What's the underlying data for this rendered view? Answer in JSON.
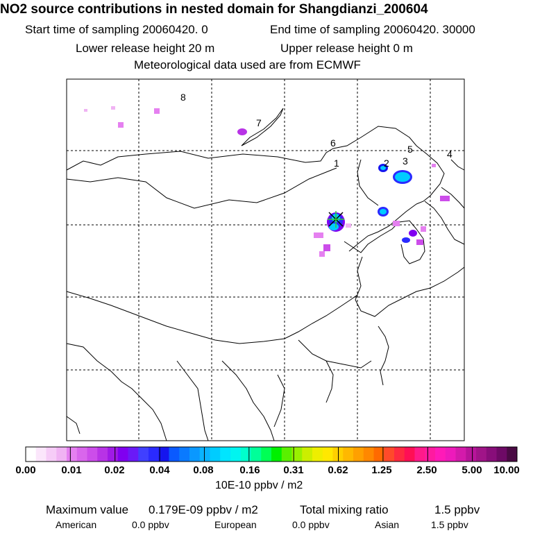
{
  "header": {
    "title": "NO2 source contributions in nested domain for Shangdianzi_200604",
    "start_label": "Start time of sampling 20060420.     0",
    "end_label": "End time of sampling 20060420. 30000",
    "lower_label": "Lower release height   20 m",
    "upper_label": "Upper release height    0 m",
    "met_label": "Meteorological data used are from ECMWF"
  },
  "map": {
    "region_labels": [
      "8",
      "7",
      "6",
      "1",
      "2",
      "3",
      "5",
      "4"
    ],
    "receptor_marker": "star-cross",
    "colors": {
      "grid": "#000000",
      "coast": "#000000",
      "plume_low": "#e080f0",
      "plume_mid": "#9933ff",
      "plume_high": "#00ccff",
      "marker": "#33cc33"
    }
  },
  "legend": {
    "ticks": [
      "0.00",
      "0.01",
      "0.02",
      "0.04",
      "0.08",
      "0.16",
      "0.31",
      "0.62",
      "1.25",
      "2.50",
      "5.00",
      "10.00"
    ],
    "unit": "10E-10 ppbv / m2",
    "colors": [
      "#ffffff",
      "#fbe6fb",
      "#f6ccf7",
      "#f0b3f3",
      "#e580f0",
      "#d966ec",
      "#cc4dea",
      "#b833e6",
      "#a01ae6",
      "#8000f0",
      "#6a1af7",
      "#4040ff",
      "#2a2aff",
      "#1515ee",
      "#0a5aff",
      "#0a7aff",
      "#0a98ff",
      "#0ab4ff",
      "#00ccff",
      "#00e5ff",
      "#00f5f0",
      "#00ffcc",
      "#00ff99",
      "#00ff55",
      "#00f000",
      "#5af000",
      "#99f000",
      "#ccee00",
      "#eeee00",
      "#ffe800",
      "#ffd000",
      "#ffb800",
      "#ffa000",
      "#ff8800",
      "#ff6a00",
      "#ff4a2a",
      "#ff2a40",
      "#ff0f55",
      "#ff1a8a",
      "#ff1aa0",
      "#ff1ab8",
      "#ee1abb",
      "#d41aab",
      "#b8149a",
      "#a01488",
      "#880e7a",
      "#6e0a66",
      "#4a0a44"
    ]
  },
  "footer": {
    "max_label": "Maximum value",
    "max_value": "0.179E-09 ppbv / m2",
    "total_label": "Total mixing ratio",
    "total_value": "1.5 ppbv",
    "regions": [
      {
        "name": "American",
        "value": "0.0 ppbv"
      },
      {
        "name": "European",
        "value": "0.0 ppbv"
      },
      {
        "name": "Asian",
        "value": "1.5 ppbv"
      }
    ]
  }
}
